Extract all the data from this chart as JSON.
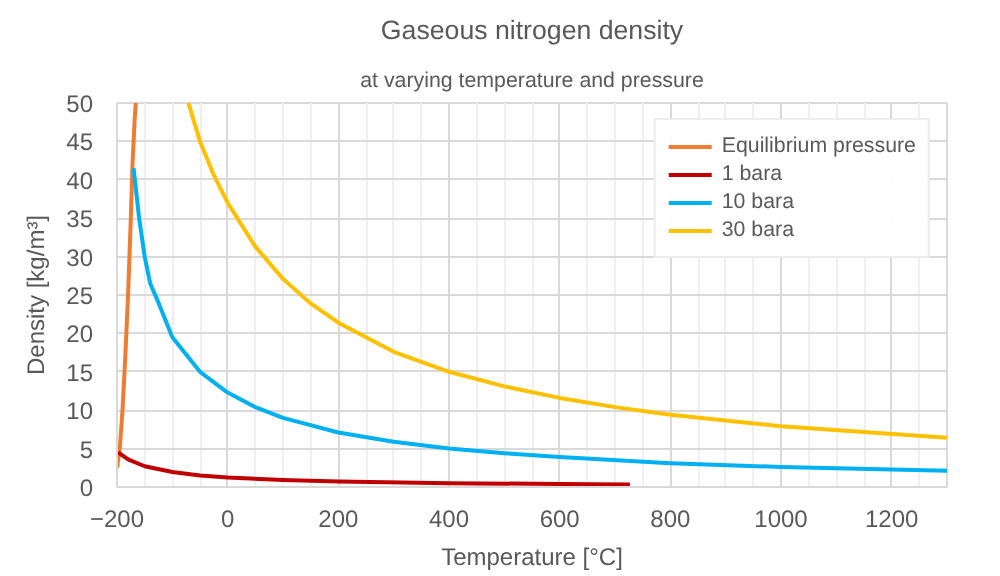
{
  "chart_data": {
    "type": "line",
    "title": "Gaseous nitrogen density",
    "subtitle": "at varying temperature and pressure",
    "xlabel": "Temperature [°C]",
    "ylabel": "Density [kg/m³]",
    "xlim": [
      -200,
      1300
    ],
    "ylim": [
      0,
      50
    ],
    "xticks": [
      -200,
      0,
      200,
      400,
      600,
      800,
      1000,
      1200
    ],
    "yticks": [
      0,
      5,
      10,
      15,
      20,
      25,
      30,
      35,
      40,
      45,
      50
    ],
    "grid": true,
    "legend": "top right",
    "marker": "none",
    "line_style": "solid",
    "series": [
      {
        "name": "Equilibrium pressure",
        "color": "#ed7d31",
        "x": [
          -200,
          -195,
          -190,
          -185,
          -180,
          -175,
          -172,
          -168,
          -166
        ],
        "values": [
          2.5,
          5,
          10,
          17,
          25,
          35,
          42,
          48,
          50
        ]
      },
      {
        "name": "1 bara",
        "color": "#c00000",
        "x": [
          -198,
          -180,
          -150,
          -100,
          -50,
          0,
          100,
          200,
          400,
          600,
          727
        ],
        "values": [
          4.5,
          3.6,
          2.7,
          1.95,
          1.5,
          1.23,
          0.9,
          0.71,
          0.5,
          0.39,
          0.34
        ]
      },
      {
        "name": "10 bara",
        "color": "#00b0f0",
        "x": [
          -170,
          -160,
          -150,
          -140,
          -128,
          -100,
          -50,
          0,
          50,
          100,
          200,
          300,
          400,
          500,
          600,
          800,
          1000,
          1300
        ],
        "values": [
          41.5,
          35,
          30,
          26.5,
          24.5,
          19.5,
          15.0,
          12.3,
          10.4,
          9.0,
          7.1,
          5.9,
          5.0,
          4.4,
          3.9,
          3.1,
          2.6,
          2.1
        ]
      },
      {
        "name": "30 bara",
        "color": "#ffc000",
        "x": [
          -71,
          -50,
          -25,
          0,
          50,
          100,
          150,
          200,
          300,
          400,
          500,
          600,
          700,
          800,
          1000,
          1300
        ],
        "values": [
          50,
          45.0,
          40.6,
          37.0,
          31.3,
          27.1,
          23.9,
          21.4,
          17.6,
          15.0,
          13.1,
          11.6,
          10.4,
          9.4,
          7.9,
          6.4
        ]
      }
    ]
  }
}
